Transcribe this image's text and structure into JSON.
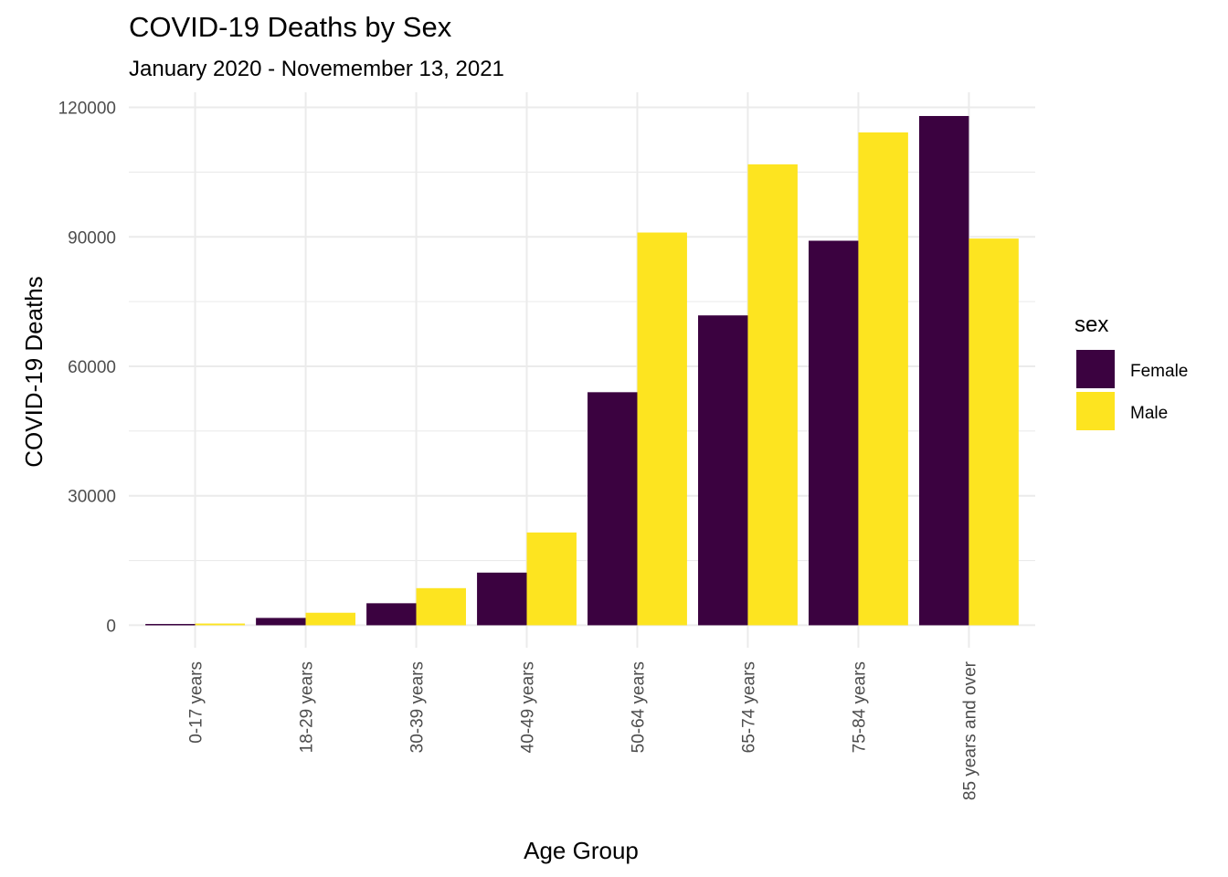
{
  "chart_data": {
    "type": "bar",
    "title": "COVID-19 Deaths by Sex",
    "subtitle": "January 2020 - Novemember 13, 2021",
    "xlabel": "Age Group",
    "ylabel": "COVID-19 Deaths",
    "categories": [
      "0-17 years",
      "18-29 years",
      "30-39 years",
      "40-49 years",
      "50-64 years",
      "65-74 years",
      "75-84 years",
      "85 years and over"
    ],
    "series": [
      {
        "name": "Female",
        "color": "#3b0240",
        "values": [
          300,
          1700,
          5100,
          12200,
          54000,
          71800,
          89100,
          118000
        ]
      },
      {
        "name": "Male",
        "color": "#fde420",
        "values": [
          400,
          2900,
          8600,
          21500,
          91000,
          106800,
          114200,
          89600
        ]
      }
    ],
    "ylim": [
      -5200,
      123500
    ],
    "yticks": [
      0,
      30000,
      60000,
      90000,
      120000
    ],
    "ytick_labels": [
      "0",
      "30000",
      "60000",
      "90000",
      "120000"
    ],
    "grid": true,
    "legend": {
      "title": "sex",
      "position": "right"
    }
  }
}
